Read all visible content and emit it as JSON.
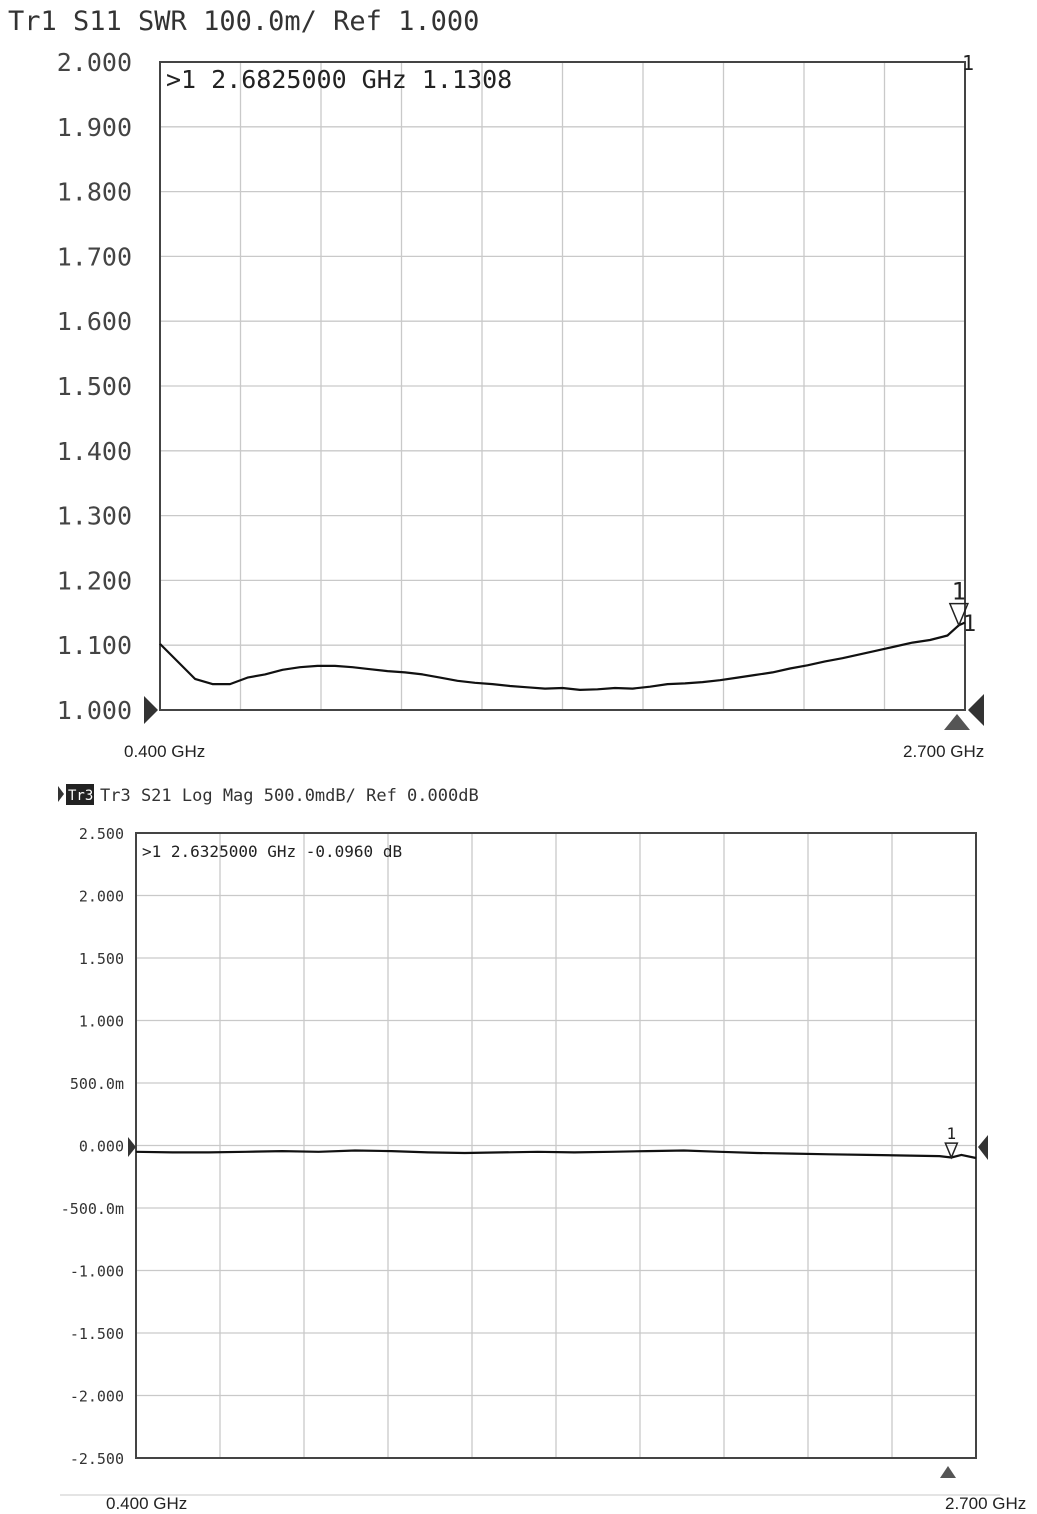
{
  "chart_data": [
    {
      "type": "line",
      "header": "Tr1 S11 SWR 100.0m/ Ref 1.000",
      "trace_color": "#111111",
      "grid": true,
      "ylim": [
        1.0,
        2.0
      ],
      "xlim": [
        0.4,
        2.7
      ],
      "y_tick_labels": [
        "2.000",
        "1.900",
        "1.800",
        "1.700",
        "1.600",
        "1.500",
        "1.400",
        "1.300",
        "1.200",
        "1.100",
        "1.000"
      ],
      "x_start_label": "0.400 GHz",
      "x_stop_label": "2.700 GHz",
      "marker": {
        "readout": ">1  2.6825000 GHz  1.1308",
        "number": "1",
        "x": 2.6825,
        "y": 1.1308
      },
      "corner_label": "1",
      "series": [
        {
          "x": [
            0.4,
            0.45,
            0.5,
            0.55,
            0.6,
            0.65,
            0.7,
            0.75,
            0.8,
            0.85,
            0.9,
            0.95,
            1.0,
            1.05,
            1.1,
            1.15,
            1.2,
            1.25,
            1.3,
            1.35,
            1.4,
            1.45,
            1.5,
            1.55,
            1.6,
            1.65,
            1.7,
            1.75,
            1.8,
            1.85,
            1.9,
            1.95,
            2.0,
            2.05,
            2.1,
            2.15,
            2.2,
            2.25,
            2.3,
            2.35,
            2.4,
            2.45,
            2.5,
            2.55,
            2.6,
            2.65,
            2.6825,
            2.7
          ],
          "values": [
            1.102,
            1.075,
            1.048,
            1.04,
            1.04,
            1.05,
            1.055,
            1.062,
            1.066,
            1.068,
            1.068,
            1.066,
            1.063,
            1.06,
            1.058,
            1.055,
            1.05,
            1.045,
            1.042,
            1.04,
            1.037,
            1.035,
            1.033,
            1.034,
            1.031,
            1.032,
            1.034,
            1.033,
            1.036,
            1.04,
            1.041,
            1.043,
            1.046,
            1.05,
            1.054,
            1.058,
            1.064,
            1.069,
            1.075,
            1.08,
            1.086,
            1.092,
            1.098,
            1.104,
            1.108,
            1.115,
            1.1308,
            1.135
          ]
        }
      ]
    },
    {
      "type": "line",
      "header": "Tr3 S21 Log Mag 500.0mdB/ Ref 0.000dB",
      "trace_badge": "Tr3",
      "trace_color": "#111111",
      "grid": true,
      "ylim": [
        -2.5,
        2.5
      ],
      "xlim": [
        0.4,
        2.7
      ],
      "y_tick_labels": [
        "2.500",
        "2.000",
        "1.500",
        "1.000",
        "500.0m",
        "0.000",
        "-500.0m",
        "-1.000",
        "-1.500",
        "-2.000",
        "-2.500"
      ],
      "x_start_label": "0.400 GHz",
      "x_stop_label": "2.700 GHz",
      "marker": {
        "readout": ">1  2.6325000 GHz  -0.0960 dB",
        "number": "1",
        "x": 2.6325,
        "y": -0.096
      },
      "series": [
        {
          "x": [
            0.4,
            0.5,
            0.6,
            0.7,
            0.8,
            0.9,
            1.0,
            1.1,
            1.2,
            1.3,
            1.4,
            1.5,
            1.6,
            1.7,
            1.8,
            1.9,
            2.0,
            2.1,
            2.2,
            2.3,
            2.4,
            2.5,
            2.6,
            2.6325,
            2.66,
            2.7
          ],
          "values": [
            -0.05,
            -0.055,
            -0.055,
            -0.05,
            -0.045,
            -0.05,
            -0.04,
            -0.045,
            -0.055,
            -0.06,
            -0.055,
            -0.05,
            -0.055,
            -0.05,
            -0.045,
            -0.04,
            -0.05,
            -0.06,
            -0.065,
            -0.07,
            -0.075,
            -0.08,
            -0.085,
            -0.096,
            -0.075,
            -0.1
          ]
        }
      ]
    }
  ]
}
